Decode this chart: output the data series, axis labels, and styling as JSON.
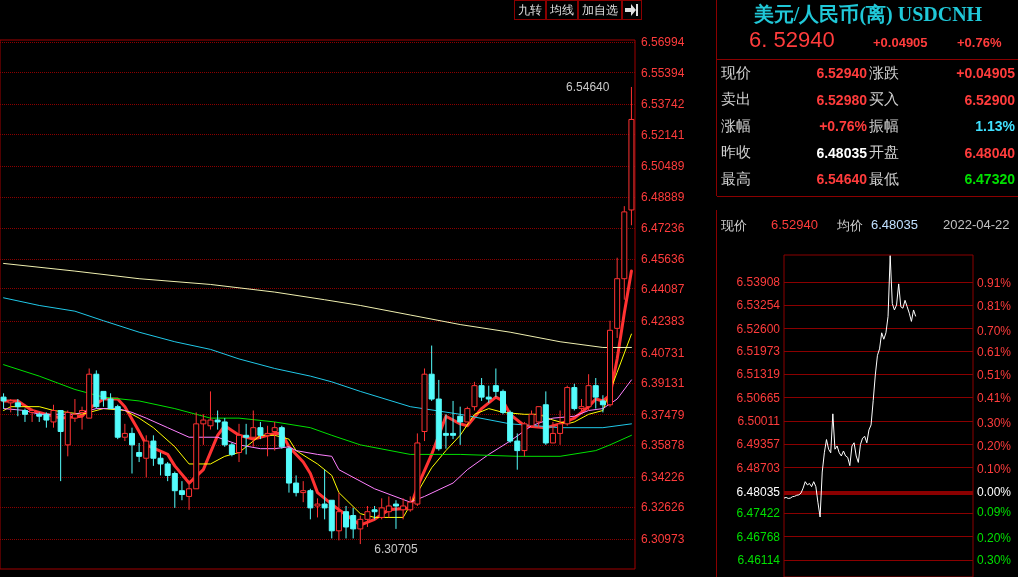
{
  "chart_data": [
    {
      "type": "candlestick",
      "annotations": [
        "九转",
        "均线",
        "加自选",
        "6.54640",
        "6.30705"
      ],
      "categories": [
        null,
        null,
        null,
        null,
        null,
        null,
        null,
        null,
        null,
        null,
        null,
        null,
        null,
        null,
        null,
        null,
        null,
        null,
        null,
        null,
        null,
        null,
        null,
        null,
        null,
        null,
        null,
        null,
        null,
        null,
        null,
        null,
        null,
        null,
        null,
        null,
        null,
        null,
        null,
        null,
        null,
        null,
        null,
        null,
        null,
        null,
        null,
        null,
        null,
        null,
        null,
        null,
        null,
        null,
        null,
        null,
        null,
        null,
        null,
        null,
        null,
        null,
        null,
        null,
        null,
        null,
        null,
        null,
        null,
        null,
        null,
        null,
        null,
        null,
        null,
        null,
        null,
        null,
        null,
        null,
        null,
        null,
        null,
        null,
        null,
        null,
        null,
        null,
        null
      ],
      "ohlc": [
        [
          6.384,
          6.386,
          6.378,
          6.382
        ],
        [
          6.381,
          6.383,
          6.376,
          6.382
        ],
        [
          6.381,
          6.383,
          6.374,
          6.379
        ],
        [
          6.377,
          6.378,
          6.371,
          6.375
        ],
        [
          6.376,
          6.378,
          6.371,
          6.377
        ],
        [
          6.375,
          6.376,
          6.371,
          6.374
        ],
        [
          6.375,
          6.376,
          6.368,
          6.372
        ],
        [
          6.371,
          6.38,
          6.368,
          6.377
        ],
        [
          6.377,
          6.377,
          6.34,
          6.366
        ],
        [
          6.359,
          6.377,
          6.353,
          6.376
        ],
        [
          6.373,
          6.383,
          6.371,
          6.375
        ],
        [
          6.376,
          6.379,
          6.367,
          6.377
        ],
        [
          6.373,
          6.399,
          6.373,
          6.396
        ],
        [
          6.396,
          6.398,
          6.378,
          6.379
        ],
        [
          6.387,
          6.387,
          6.379,
          6.383
        ],
        [
          6.383,
          6.386,
          6.378,
          6.378
        ],
        [
          6.379,
          6.38,
          6.362,
          6.363
        ],
        [
          6.363,
          6.37,
          6.361,
          6.365
        ],
        [
          6.365,
          6.368,
          6.344,
          6.359
        ],
        [
          6.355,
          6.36,
          6.35,
          6.353
        ],
        [
          6.352,
          6.364,
          6.342,
          6.361
        ],
        [
          6.361,
          6.364,
          6.348,
          6.352
        ],
        [
          6.352,
          6.355,
          6.343,
          6.349
        ],
        [
          6.349,
          6.35,
          6.34,
          6.343
        ],
        [
          6.344,
          6.345,
          6.326,
          6.335
        ],
        [
          6.335,
          6.34,
          6.33,
          6.333
        ],
        [
          6.332,
          6.339,
          6.325,
          6.336
        ],
        [
          6.336,
          6.376,
          6.336,
          6.37
        ],
        [
          6.37,
          6.375,
          6.359,
          6.372
        ],
        [
          6.369,
          6.387,
          6.367,
          6.372
        ],
        [
          6.372,
          6.377,
          6.367,
          6.371
        ],
        [
          6.371,
          6.373,
          6.358,
          6.359
        ],
        [
          6.359,
          6.36,
          6.353,
          6.354
        ],
        [
          6.355,
          6.37,
          6.35,
          6.364
        ],
        [
          6.364,
          6.37,
          6.354,
          6.363
        ],
        [
          6.363,
          6.377,
          6.358,
          6.368
        ],
        [
          6.368,
          6.371,
          6.362,
          6.364
        ],
        [
          6.364,
          6.369,
          6.353,
          6.365
        ],
        [
          6.366,
          6.371,
          6.356,
          6.368
        ],
        [
          6.368,
          6.369,
          6.357,
          6.358
        ],
        [
          6.357,
          6.358,
          6.334,
          6.339
        ],
        [
          6.339,
          6.343,
          6.332,
          6.334
        ],
        [
          6.334,
          6.34,
          6.329,
          6.335
        ],
        [
          6.335,
          6.336,
          6.32,
          6.326
        ],
        [
          6.327,
          6.331,
          6.321,
          6.328
        ],
        [
          6.328,
          6.346,
          6.32,
          6.326
        ],
        [
          6.33,
          6.33,
          6.31,
          6.314
        ],
        [
          6.314,
          6.334,
          6.309,
          6.324
        ],
        [
          6.324,
          6.327,
          6.31,
          6.316
        ],
        [
          6.322,
          6.326,
          6.31,
          6.315
        ],
        [
          6.315,
          6.322,
          6.30705,
          6.32
        ],
        [
          6.32,
          6.327,
          6.316,
          6.324
        ],
        [
          6.325,
          6.327,
          6.32,
          6.324
        ],
        [
          6.321,
          6.331,
          6.32,
          6.326
        ],
        [
          6.324,
          6.332,
          6.321,
          6.327
        ],
        [
          6.328,
          6.33,
          6.315,
          6.327
        ],
        [
          6.325,
          6.331,
          6.32,
          6.327
        ],
        [
          6.325,
          6.332,
          6.324,
          6.329
        ],
        [
          6.328,
          6.365,
          6.327,
          6.36
        ],
        [
          6.366,
          6.399,
          6.361,
          6.396
        ],
        [
          6.396,
          6.411,
          6.382,
          6.383
        ],
        [
          6.383,
          6.393,
          6.356,
          6.357
        ],
        [
          6.365,
          6.375,
          6.357,
          6.364
        ],
        [
          6.365,
          6.382,
          6.362,
          6.364
        ],
        [
          6.374,
          6.379,
          6.359,
          6.371
        ],
        [
          6.371,
          6.379,
          6.371,
          6.378
        ],
        [
          6.379,
          6.392,
          6.377,
          6.39
        ],
        [
          6.39,
          6.394,
          6.382,
          6.384
        ],
        [
          6.384,
          6.39,
          6.381,
          6.383
        ],
        [
          6.39,
          6.399,
          6.384,
          6.387
        ],
        [
          6.387,
          6.388,
          6.375,
          6.376
        ],
        [
          6.376,
          6.377,
          6.36,
          6.361
        ],
        [
          6.361,
          6.365,
          6.346,
          6.356
        ],
        [
          6.356,
          6.371,
          6.353,
          6.37
        ],
        [
          6.369,
          6.377,
          6.368,
          6.375
        ],
        [
          6.371,
          6.379,
          6.368,
          6.379
        ],
        [
          6.38,
          6.387,
          6.359,
          6.36
        ],
        [
          6.36,
          6.371,
          6.36,
          6.365
        ],
        [
          6.365,
          6.377,
          6.359,
          6.37
        ],
        [
          6.37,
          6.39,
          6.369,
          6.389
        ],
        [
          6.389,
          6.391,
          6.377,
          6.378
        ],
        [
          6.378,
          6.383,
          6.376,
          6.379
        ],
        [
          6.379,
          6.396,
          6.377,
          6.39
        ],
        [
          6.39,
          6.394,
          6.378,
          6.384
        ],
        [
          6.382,
          6.385,
          6.376,
          6.38
        ],
        [
          6.38,
          6.424,
          6.379,
          6.419
        ],
        [
          6.42,
          6.457,
          6.415,
          6.446
        ],
        [
          6.446,
          6.484,
          6.435,
          6.481
        ],
        [
          6.482,
          6.5464,
          6.474,
          6.5294
        ]
      ],
      "series": [
        {
          "type": "line",
          "color": "#ff3232",
          "values": [
            6.382,
            null,
            6.382,
            null,
            6.377,
            6.376,
            null,
            null,
            6.373,
            null,
            null,
            6.374,
            6.378,
            null,
            6.383,
            null,
            6.383,
            6.379,
            null,
            6.366,
            6.359,
            null,
            null,
            6.354,
            6.348,
            null,
            6.339,
            null,
            6.346,
            null,
            6.364,
            6.369,
            null,
            6.364,
            null,
            6.362,
            6.363,
            null,
            6.365,
            6.365,
            6.358,
            null,
            6.35,
            6.344,
            6.334,
            null,
            6.328,
            6.325,
            null,
            null,
            6.317,
            null,
            6.32,
            null,
            6.325,
            null,
            null,
            6.326,
            6.337,
            null,
            6.354,
            null,
            6.374,
            null,
            6.37,
            6.369,
            null,
            6.378,
            null,
            6.384,
            6.382,
            6.375,
            null,
            6.369,
            null,
            null,
            6.368,
            null,
            6.37,
            null,
            6.373,
            null,
            6.379,
            6.383,
            6.382,
            6.385,
            6.404,
            6.428,
            6.45
          ]
        },
        {
          "type": "line",
          "color": "#ffff00",
          "values": [
            6.377,
            6.379,
            null,
            null,
            null,
            6.379,
            null,
            6.377,
            null,
            null,
            null,
            6.375,
            null,
            null,
            6.378,
            null,
            null,
            6.377,
            null,
            6.373,
            null,
            6.368,
            null,
            null,
            6.358,
            null,
            6.349,
            null,
            null,
            6.349,
            null,
            6.353,
            null,
            6.355,
            null,
            null,
            6.364,
            null,
            6.364,
            null,
            6.362,
            6.356,
            null,
            null,
            6.349,
            null,
            6.343,
            6.334,
            null,
            null,
            6.323,
            null,
            6.321,
            null,
            null,
            null,
            6.321,
            null,
            null,
            null,
            6.347,
            null,
            6.356,
            null,
            6.364,
            null,
            6.375,
            null,
            6.378,
            null,
            6.376,
            null,
            null,
            6.375,
            null,
            6.375,
            null,
            6.372,
            null,
            6.37,
            6.371,
            null,
            6.375,
            null,
            6.377,
            null,
            6.397,
            null,
            6.417
          ]
        },
        {
          "type": "line",
          "color": "#ff80ff",
          "values": [
            6.378,
            null,
            null,
            6.377,
            null,
            6.375,
            null,
            null,
            null,
            null,
            6.375,
            null,
            null,
            6.378,
            null,
            null,
            6.378,
            null,
            6.376,
            null,
            6.373,
            null,
            null,
            6.368,
            null,
            null,
            6.363,
            null,
            6.363,
            null,
            6.363,
            null,
            null,
            6.359,
            null,
            null,
            6.357,
            null,
            6.357,
            null,
            6.358,
            6.356,
            null,
            null,
            6.354,
            null,
            6.353,
            6.346,
            null,
            null,
            null,
            null,
            6.336,
            null,
            null,
            null,
            null,
            6.329,
            null,
            6.332,
            null,
            null,
            null,
            6.339,
            null,
            6.346,
            null,
            null,
            6.354,
            null,
            null,
            6.361,
            null,
            null,
            6.369,
            null,
            null,
            6.373,
            null,
            null,
            6.374,
            null,
            6.377,
            null,
            6.378,
            null,
            6.383,
            null,
            6.393
          ]
        },
        {
          "type": "line",
          "color": "#00e000",
          "values": [
            6.401,
            null,
            null,
            null,
            null,
            6.395,
            null,
            null,
            null,
            null,
            6.388,
            null,
            null,
            null,
            6.384,
            null,
            null,
            null,
            null,
            6.382,
            null,
            null,
            null,
            null,
            6.378,
            null,
            null,
            null,
            null,
            6.373,
            null,
            null,
            null,
            6.373,
            null,
            null,
            null,
            null,
            6.371,
            null,
            null,
            null,
            null,
            6.368,
            null,
            null,
            6.364,
            null,
            null,
            null,
            6.359,
            null,
            null,
            null,
            null,
            null,
            null,
            6.354,
            null,
            null,
            null,
            null,
            null,
            null,
            6.354,
            null,
            null,
            null,
            null,
            null,
            null,
            null,
            6.353,
            null,
            null,
            null,
            null,
            null,
            6.353,
            null,
            null,
            null,
            null,
            6.356,
            null,
            6.359,
            null,
            null,
            6.364
          ]
        },
        {
          "type": "line",
          "color": "#20c8e8",
          "values": [
            6.436,
            null,
            null,
            null,
            null,
            6.432,
            null,
            null,
            null,
            null,
            6.429,
            null,
            null,
            null,
            6.424,
            null,
            null,
            null,
            null,
            6.418,
            null,
            null,
            null,
            null,
            6.413,
            null,
            null,
            null,
            null,
            6.409,
            null,
            null,
            null,
            6.404,
            null,
            null,
            null,
            null,
            6.399,
            null,
            null,
            null,
            null,
            6.395,
            null,
            null,
            6.392,
            null,
            null,
            null,
            6.387,
            null,
            null,
            null,
            null,
            null,
            null,
            6.379,
            null,
            null,
            null,
            null,
            null,
            null,
            6.375,
            null,
            null,
            null,
            null,
            null,
            null,
            6.37,
            null,
            null,
            null,
            null,
            null,
            null,
            6.368,
            null,
            null,
            null,
            null,
            null,
            6.368,
            null,
            null,
            null,
            6.37
          ]
        },
        {
          "type": "line",
          "color": "#f0f0b0",
          "values": [
            6.454,
            null,
            null,
            null,
            null,
            null,
            null,
            null,
            null,
            null,
            6.45,
            null,
            null,
            null,
            null,
            null,
            null,
            null,
            null,
            6.446,
            null,
            null,
            null,
            null,
            null,
            null,
            null,
            null,
            null,
            6.443,
            null,
            null,
            null,
            null,
            null,
            null,
            null,
            null,
            6.439,
            null,
            null,
            null,
            null,
            null,
            null,
            6.435,
            null,
            null,
            null,
            null,
            6.432,
            null,
            null,
            null,
            null,
            null,
            null,
            6.427,
            null,
            null,
            null,
            null,
            null,
            null,
            6.422,
            null,
            null,
            null,
            null,
            null,
            null,
            6.418,
            null,
            null,
            null,
            null,
            null,
            null,
            6.413,
            null,
            null,
            null,
            null,
            null,
            6.41,
            null,
            null,
            null,
            6.41
          ]
        }
      ],
      "ylim": [
        6.294,
        6.571
      ],
      "yticks": [
        6.56994,
        6.55394,
        6.53742,
        6.52141,
        6.50489,
        6.48889,
        6.47236,
        6.45636,
        6.44087,
        6.42383,
        6.40731,
        6.39131,
        6.37479,
        6.35878,
        6.34226,
        6.32626,
        6.30973
      ],
      "grid": "y"
    },
    {
      "type": "other",
      "title": "美元/人民币(离) USDCNH",
      "annotations": [
        "6. 52940",
        "+0.04905",
        "+0.76%",
        "现价",
        "6.52940",
        "涨跌",
        "+0.04905",
        "卖出",
        "6.52980",
        "买入",
        "6.52900",
        "涨幅",
        "+0.76%",
        "振幅",
        "1.13%",
        "昨收",
        "6.48035",
        "开盘",
        "6.48040",
        "最高",
        "6.54640",
        "最低",
        "6.47320"
      ]
    },
    {
      "type": "line",
      "annotations": [
        "现价",
        "6.52940",
        "均价",
        "6.48035",
        "2022-04-22"
      ],
      "categories": [
        null,
        null,
        null,
        null,
        null,
        null,
        null,
        null,
        null,
        null,
        null,
        null,
        null,
        null,
        null,
        null,
        null,
        null,
        null,
        null,
        null,
        null,
        null,
        null,
        null,
        null,
        null,
        null,
        null,
        null,
        null,
        null,
        null,
        null,
        null,
        null,
        null,
        null,
        null,
        null,
        null,
        null,
        null,
        null,
        null,
        null,
        null,
        null,
        null,
        null,
        null,
        null,
        null,
        null,
        null,
        null,
        null,
        null,
        null,
        null,
        null,
        null,
        null,
        null,
        null,
        null,
        null,
        null,
        null,
        null,
        null,
        null,
        null,
        null,
        null,
        null,
        null,
        null,
        null,
        null,
        null,
        null,
        null,
        null,
        null,
        null,
        null,
        null,
        null,
        null
      ],
      "series": [
        {
          "color": "#ffffff",
          "values": [
            6.4785,
            6.4787,
            6.4784,
            6.4785,
            6.4789,
            6.479,
            6.4793,
            6.4794,
            6.4799,
            6.4813,
            6.4831,
            6.4822,
            6.4826,
            6.4817,
            6.4831,
            6.4817,
            6.4772,
            6.4732,
            6.4858,
            6.4912,
            6.4949,
            6.4922,
            6.4912,
            6.5021,
            6.4922,
            6.4931,
            6.4912,
            6.4903,
            6.4917,
            6.4903,
            6.4899,
            6.4876,
            6.4931,
            6.494,
            6.4903,
            6.4885,
            6.4935,
            6.4953,
            6.4958,
            6.494,
            6.4976,
            6.499,
            6.5058,
            6.513,
            6.5185,
            6.5203,
            6.5248,
            6.523,
            6.5248,
            6.5294,
            6.5464,
            6.533,
            6.5312,
            6.5326,
            6.5385,
            6.5321,
            6.5317,
            6.5339,
            6.5321,
            6.5303,
            6.528,
            6.5312,
            6.5294,
            null,
            null,
            null,
            null,
            null,
            null,
            null,
            null,
            null,
            null,
            null,
            null,
            null,
            null,
            null,
            null,
            null,
            null,
            null,
            null,
            null,
            null,
            null,
            null,
            null,
            null,
            null
          ]
        }
      ],
      "ylim": [
        6.4564,
        6.5466
      ],
      "yticks": [
        6.53908,
        6.53254,
        {
          "value": 6.526,
          "label": "6.52600"
        },
        6.51973,
        6.51319,
        6.50665,
        6.50011,
        6.49357,
        6.48703,
        6.48035,
        6.47422,
        6.46768,
        6.46114
      ],
      "y2lim": [
        -0.372,
        1.031
      ],
      "y2ticks": [
        {
          "value": 0.91,
          "label": "0.91%"
        },
        {
          "value": 0.81,
          "label": "0.81%"
        },
        {
          "value": 0.7,
          "label": "0.70%"
        },
        {
          "value": 0.61,
          "label": "0.61%"
        },
        {
          "value": 0.51,
          "label": "0.51%"
        },
        {
          "value": 0.41,
          "label": "0.41%"
        },
        {
          "value": 0.3,
          "label": "0.30%"
        },
        {
          "value": 0.2,
          "label": "0.20%"
        },
        {
          "value": 0.1,
          "label": "0.10%"
        },
        {
          "value": 0,
          "label": "0.00%"
        },
        {
          "value": -0.09,
          "label": "0.09%"
        },
        {
          "value": -0.2,
          "label": "0.20%"
        },
        {
          "value": -0.3,
          "label": "0.30%"
        }
      ],
      "ref_lines": [
        {
          "axis": "y",
          "value": 6.48035,
          "color": "#8b0000"
        }
      ],
      "grid": "y"
    }
  ]
}
